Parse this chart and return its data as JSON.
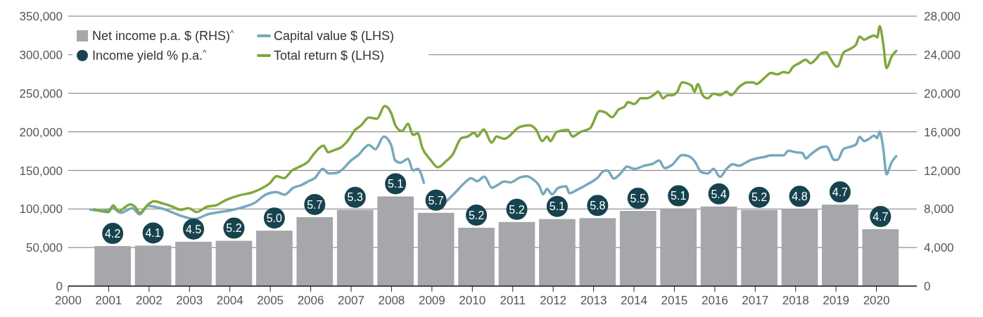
{
  "chart_data": {
    "type": "bar",
    "xlim": [
      2000,
      2021
    ],
    "xticks": [
      2000,
      2001,
      2002,
      2003,
      2004,
      2005,
      2006,
      2007,
      2008,
      2009,
      2010,
      2011,
      2012,
      2013,
      2014,
      2015,
      2016,
      2017,
      2018,
      2019,
      2020
    ],
    "ylim": [
      0,
      350000
    ],
    "yticks": [
      {
        "value": 0,
        "label": "0"
      },
      {
        "value": 50000,
        "label": "50,000"
      },
      {
        "value": 100000,
        "label": "100,000"
      },
      {
        "value": 150000,
        "label": "150,000"
      },
      {
        "value": 200000,
        "label": "200,000"
      },
      {
        "value": 250000,
        "label": "250,000"
      },
      {
        "value": 300000,
        "label": "300,000"
      },
      {
        "value": 350000,
        "label": "350,000"
      }
    ],
    "y2lim": [
      0,
      28000
    ],
    "y2ticks": [
      {
        "value": 0,
        "label": "0"
      },
      {
        "value": 4000,
        "label": "4,000"
      },
      {
        "value": 8000,
        "label": "8,000"
      },
      {
        "value": 12000,
        "label": "12,000"
      },
      {
        "value": 16000,
        "label": "16,000"
      },
      {
        "value": 20000,
        "label": "20,000"
      },
      {
        "value": 24000,
        "label": "24,000"
      },
      {
        "value": 28000,
        "label": "28,000"
      }
    ],
    "grid": "y",
    "legend": "top left",
    "annotations": [
      "4.2",
      "4.1",
      "4.5",
      "5.2",
      "5.0",
      "5.7",
      "5.3",
      "5.1",
      "5.7",
      "5.2",
      "5.2",
      "5.1",
      "5.8",
      "5.5",
      "5.1",
      "5.4",
      "5.2",
      "4.8",
      "4.7",
      "4.7"
    ],
    "series": [
      {
        "name": "Net income p.a. $ (RHS)$^{^}$",
        "color": "#a6a7ab",
        "axis": "y2",
        "x": [
          2001.1,
          2002.1,
          2003.1,
          2004.1,
          2005.1,
          2006.1,
          2007.1,
          2008.1,
          2009.1,
          2010.1,
          2011.1,
          2012.1,
          2013.1,
          2014.1,
          2015.1,
          2016.1,
          2017.1,
          2018.1,
          2019.1,
          2020.1
        ],
        "values": [
          4150,
          4200,
          4600,
          4700,
          5750,
          7150,
          7900,
          9300,
          7600,
          6050,
          6650,
          6950,
          7050,
          7800,
          8050,
          8250,
          7900,
          8000,
          8450,
          5900
        ]
      },
      {
        "type": "scatter",
        "name": "Income yield % p.a.$^{^}$",
        "color": "#17434f",
        "marker": "circle"
      },
      {
        "type": "line",
        "name": "Capital value $ (LHS)",
        "color": "#76a8bd",
        "x": [
          2000.55,
          2000.88,
          2001.1,
          2001.3,
          2001.58,
          2001.77,
          2001.97,
          2002.35,
          2002.6,
          2002.8,
          2003.13,
          2003.45,
          2003.75,
          2004.0,
          2004.3,
          2004.6,
          2004.9,
          2005.15,
          2005.35,
          2005.57,
          2005.77,
          2005.95,
          2006.1,
          2006.3,
          2006.45,
          2006.65,
          2006.8,
          2007.0,
          2007.17,
          2007.44,
          2007.6,
          2007.81,
          2007.99,
          2008.09,
          2008.22,
          2008.41,
          2008.53,
          2008.65,
          2008.8,
          2008.96,
          2009.15,
          2009.35,
          2009.58,
          2009.81,
          2009.97,
          2010.12,
          2010.3,
          2010.48,
          2010.64,
          2010.79,
          2010.95,
          2011.18,
          2011.34,
          2011.5,
          2011.66,
          2011.75,
          2011.85,
          2011.97,
          2012.13,
          2012.32,
          2012.4,
          2012.6,
          2012.83,
          2013.11,
          2013.24,
          2013.34,
          2013.5,
          2013.7,
          2013.82,
          2014.01,
          2014.25,
          2014.48,
          2014.62,
          2014.76,
          2014.95,
          2015.19,
          2015.35,
          2015.5,
          2015.66,
          2015.82,
          2015.97,
          2016.13,
          2016.29,
          2016.44,
          2016.6,
          2016.76,
          2016.92,
          2017.07,
          2017.23,
          2017.39,
          2017.7,
          2017.82,
          2018.01,
          2018.17,
          2018.25,
          2018.37,
          2018.64,
          2018.76,
          2018.96,
          2019.03,
          2019.19,
          2019.35,
          2019.5,
          2019.58,
          2019.7,
          2019.82,
          2019.94,
          2020.02,
          2020.08,
          2020.17,
          2020.25,
          2020.37,
          2020.49
        ],
        "values": [
          99000,
          97500,
          101000,
          95000,
          101000,
          93000,
          104000,
          100000,
          95000,
          91000,
          87000,
          93000,
          96000,
          98000,
          102000,
          107500,
          119000,
          122000,
          118500,
          127500,
          131000,
          136000,
          140000,
          152000,
          146000,
          147000,
          152000,
          163000,
          169500,
          183000,
          177500,
          194000,
          183000,
          163000,
          160000,
          165000,
          150000,
          152000,
          134000,
          null,
          null,
          109500,
          121500,
          134000,
          140000,
          136000,
          142000,
          127500,
          131500,
          135500,
          134500,
          141000,
          142500,
          138500,
          129500,
          119000,
          126000,
          119000,
          127500,
          129500,
          120500,
          125000,
          131500,
          141000,
          149000,
          150000,
          139500,
          148000,
          155000,
          152000,
          156000,
          159000,
          163000,
          153000,
          157500,
          170000,
          168500,
          162000,
          148000,
          146000,
          152000,
          141500,
          152000,
          158000,
          156000,
          160000,
          164000,
          166000,
          167500,
          169500,
          169500,
          175500,
          173500,
          172500,
          165500,
          170500,
          180000,
          181000,
          163500,
          163500,
          178000,
          180500,
          184000,
          193500,
          188000,
          191000,
          195000,
          192000,
          200500,
          178000,
          145000,
          160000,
          168500
        ]
      },
      {
        "type": "line",
        "name": "Total return $ (LHS)",
        "color": "#7fa83d",
        "x": [
          2000.64,
          2001.0,
          2001.11,
          2001.25,
          2001.42,
          2001.54,
          2001.65,
          2001.77,
          2001.96,
          2002.12,
          2002.35,
          2002.58,
          2002.78,
          2002.98,
          2003.17,
          2003.44,
          2003.67,
          2003.9,
          2004.22,
          2004.53,
          2004.76,
          2005.0,
          2005.15,
          2005.34,
          2005.54,
          2005.77,
          2005.93,
          2006.08,
          2006.32,
          2006.43,
          2006.59,
          2006.74,
          2006.94,
          2007.09,
          2007.24,
          2007.44,
          2007.64,
          2007.83,
          2007.99,
          2008.1,
          2008.26,
          2008.41,
          2008.53,
          2008.65,
          2008.76,
          2008.96,
          2009.15,
          2009.35,
          2009.5,
          2009.73,
          2009.89,
          2010.05,
          2010.12,
          2010.28,
          2010.48,
          2010.6,
          2010.79,
          2011.18,
          2011.42,
          2011.58,
          2011.73,
          2011.85,
          2011.93,
          2012.09,
          2012.36,
          2012.48,
          2012.68,
          2012.91,
          2013.15,
          2013.3,
          2013.46,
          2013.62,
          2013.77,
          2013.85,
          2014.01,
          2014.17,
          2014.32,
          2014.48,
          2014.6,
          2014.72,
          2014.83,
          2014.95,
          2015.07,
          2015.19,
          2015.42,
          2015.5,
          2015.58,
          2015.7,
          2015.82,
          2015.97,
          2016.13,
          2016.29,
          2016.4,
          2016.6,
          2016.8,
          2016.95,
          2017.03,
          2017.23,
          2017.39,
          2017.54,
          2017.7,
          2017.82,
          2017.93,
          2018.09,
          2018.25,
          2018.37,
          2018.48,
          2018.64,
          2018.76,
          2018.84,
          2018.96,
          2019.03,
          2019.19,
          2019.35,
          2019.5,
          2019.58,
          2019.7,
          2019.82,
          2019.94,
          2020.02,
          2020.08,
          2020.17,
          2020.25,
          2020.37,
          2020.49
        ],
        "values": [
          99500,
          96000,
          104500,
          97000,
          103000,
          106000,
          103000,
          95000,
          105000,
          110000,
          107000,
          103000,
          99000,
          101000,
          96000,
          103000,
          105000,
          111500,
          117500,
          121000,
          126000,
          134000,
          142500,
          140000,
          150000,
          156000,
          161000,
          171500,
          182000,
          173500,
          176500,
          179500,
          190000,
          202000,
          208000,
          218500,
          217000,
          233500,
          224500,
          208000,
          201000,
          210500,
          196000,
          198000,
          179500,
          164000,
          154000,
          162000,
          169500,
          192000,
          194000,
          199000,
          194000,
          203000,
          186000,
          194000,
          191000,
          206500,
          208500,
          202500,
          188000,
          194000,
          188000,
          200000,
          202500,
          194000,
          200000,
          204500,
          227000,
          225000,
          219000,
          229000,
          233000,
          238500,
          236000,
          243500,
          243500,
          247500,
          252000,
          243500,
          247500,
          247500,
          252000,
          264000,
          260000,
          252000,
          262000,
          247500,
          243500,
          249500,
          247500,
          252000,
          247500,
          258000,
          264000,
          264000,
          262000,
          270000,
          276500,
          274500,
          277500,
          276500,
          284000,
          289000,
          293500,
          289000,
          293000,
          302000,
          303000,
          297000,
          287000,
          284500,
          303000,
          307500,
          313500,
          323500,
          319500,
          322500,
          325000,
          322500,
          337000,
          313500,
          282500,
          297000,
          305000
        ]
      }
    ]
  }
}
